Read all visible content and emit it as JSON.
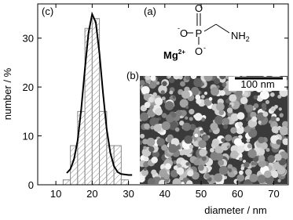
{
  "chart_data": {
    "type": "histogram",
    "xlabel": "diameter / nm",
    "ylabel": "number / %",
    "bins": [
      12,
      14,
      16,
      18,
      20,
      22,
      24,
      26,
      28,
      30
    ],
    "values": [
      1,
      8,
      15,
      32,
      34,
      15,
      8,
      8,
      1
    ],
    "bar_color": "#888888",
    "fit": {
      "color": "#000000",
      "x": [
        13,
        14,
        15,
        16,
        17,
        18,
        19,
        20,
        21,
        22,
        23,
        24,
        25,
        26,
        27,
        28,
        30,
        31
      ],
      "values": [
        2.4,
        3.2,
        5.2,
        9.1,
        15.6,
        23.7,
        31.1,
        34.9,
        33.2,
        26.9,
        18.7,
        11.4,
        6.5,
        3.8,
        2.6,
        2.2,
        2.0,
        2.0
      ]
    },
    "xlim": [
      5,
      74
    ],
    "ylim": [
      0,
      37
    ],
    "xticks": [
      10,
      20,
      30,
      40,
      50,
      60,
      70
    ],
    "yticks": [
      0,
      10,
      20,
      30
    ],
    "panel_labels": [
      "(c)",
      "(a)",
      "(b)"
    ],
    "scale_bar": "100 nm",
    "molecule": {
      "top_o": "O",
      "p": "P",
      "left_o": "O",
      "left_charge": "-",
      "bottom_o": "O",
      "bottom_charge": "-",
      "amine": "NH",
      "amine_sub": "2",
      "cation": "Mg",
      "cation_charge": "2+"
    }
  }
}
